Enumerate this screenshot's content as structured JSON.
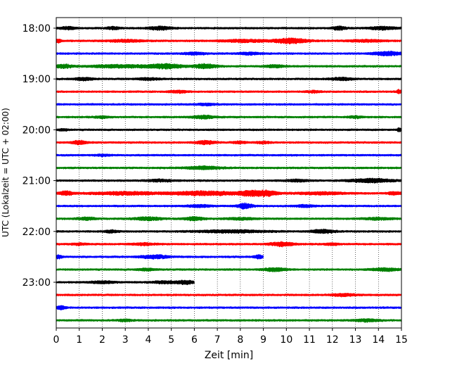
{
  "chart_data": {
    "type": "seismogram",
    "xlabel": "Zeit  [min]",
    "ylabel": "UTC (Lokalzeit = UTC + 02:00)",
    "xlim": [
      0,
      15
    ],
    "x_ticks": [
      "0",
      "1",
      "2",
      "3",
      "4",
      "5",
      "6",
      "7",
      "8",
      "9",
      "10",
      "11",
      "12",
      "13",
      "14",
      "15"
    ],
    "y_ticks": [
      {
        "label": "18:00",
        "trace": 0
      },
      {
        "label": "19:00",
        "trace": 4
      },
      {
        "label": "20:00",
        "trace": 8
      },
      {
        "label": "21:00",
        "trace": 12
      },
      {
        "label": "22:00",
        "trace": 16
      },
      {
        "label": "23:00",
        "trace": 20
      }
    ],
    "grid_x": true,
    "color_cycle": [
      "#000000",
      "#ff0000",
      "#0000ff",
      "#008000"
    ],
    "trace_minutes": 15,
    "traces": [
      {
        "start": "18:00",
        "end_min": 15,
        "bursts": [
          [
            0.5,
            0.3,
            1.8
          ],
          [
            2.5,
            0.3,
            1.6
          ],
          [
            4.5,
            0.5,
            2.0
          ],
          [
            12.3,
            0.3,
            2.2
          ],
          [
            14.2,
            0.6,
            1.8
          ]
        ]
      },
      {
        "start": "18:15",
        "end_min": 15,
        "bursts": [
          [
            0.1,
            0.15,
            2.0
          ],
          [
            3.0,
            0.8,
            1.3
          ],
          [
            8.2,
            1.0,
            1.6
          ],
          [
            10.2,
            0.7,
            3.2
          ],
          [
            13.5,
            0.8,
            1.3
          ]
        ]
      },
      {
        "start": "18:30",
        "end_min": 15,
        "bursts": [
          [
            6.0,
            0.5,
            1.3
          ],
          [
            8.4,
            0.5,
            1.4
          ],
          [
            14.4,
            0.6,
            2.4
          ]
        ]
      },
      {
        "start": "18:45",
        "end_min": 15,
        "bursts": [
          [
            0.3,
            0.4,
            2.2
          ],
          [
            2.8,
            1.3,
            1.8
          ],
          [
            4.8,
            0.7,
            3.0
          ],
          [
            6.5,
            0.5,
            2.8
          ],
          [
            9.5,
            0.4,
            1.8
          ]
        ]
      },
      {
        "start": "19:00",
        "end_min": 15,
        "bursts": [
          [
            1.2,
            0.4,
            1.6
          ],
          [
            4.0,
            0.5,
            1.3
          ],
          [
            12.4,
            0.5,
            1.6
          ]
        ]
      },
      {
        "start": "19:15",
        "end_min": 15,
        "bursts": [
          [
            5.3,
            0.4,
            1.3
          ],
          [
            11.2,
            0.3,
            1.2
          ],
          [
            14.9,
            0.1,
            2.4
          ]
        ]
      },
      {
        "start": "19:30",
        "end_min": 15,
        "bursts": [
          [
            6.5,
            0.4,
            1.2
          ]
        ]
      },
      {
        "start": "19:45",
        "end_min": 15,
        "bursts": [
          [
            2.0,
            0.3,
            1.1
          ],
          [
            6.4,
            0.5,
            2.0
          ],
          [
            13.0,
            0.3,
            1.1
          ]
        ]
      },
      {
        "start": "20:00",
        "end_min": 15,
        "bursts": [
          [
            0.3,
            0.2,
            1.2
          ],
          [
            14.9,
            0.1,
            2.0
          ]
        ]
      },
      {
        "start": "20:15",
        "end_min": 15,
        "bursts": [
          [
            1.0,
            0.3,
            2.4
          ],
          [
            6.5,
            0.4,
            2.2
          ],
          [
            8.0,
            0.3,
            1.3
          ],
          [
            9.0,
            0.3,
            1.3
          ]
        ]
      },
      {
        "start": "20:30",
        "end_min": 15,
        "bursts": [
          [
            2.0,
            0.3,
            1.0
          ]
        ]
      },
      {
        "start": "20:45",
        "end_min": 15,
        "bursts": [
          [
            6.4,
            0.8,
            1.8
          ]
        ]
      },
      {
        "start": "21:00",
        "end_min": 15,
        "bursts": [
          [
            4.5,
            0.6,
            1.3
          ],
          [
            10.5,
            0.5,
            1.3
          ],
          [
            13.7,
            0.9,
            2.4
          ]
        ]
      },
      {
        "start": "21:15",
        "end_min": 15,
        "bursts": [
          [
            0.4,
            0.3,
            2.6
          ],
          [
            3.0,
            1.5,
            1.8
          ],
          [
            6.5,
            1.5,
            2.6
          ],
          [
            8.5,
            0.5,
            3.2
          ],
          [
            9.2,
            0.4,
            3.0
          ],
          [
            11.5,
            1.2,
            1.4
          ],
          [
            14.7,
            0.3,
            2.0
          ]
        ]
      },
      {
        "start": "21:30",
        "end_min": 15,
        "bursts": [
          [
            6.2,
            0.5,
            1.4
          ],
          [
            8.2,
            0.3,
            3.4
          ],
          [
            10.8,
            0.4,
            1.3
          ]
        ]
      },
      {
        "start": "21:45",
        "end_min": 15,
        "bursts": [
          [
            1.3,
            0.4,
            1.6
          ],
          [
            4.0,
            0.6,
            2.0
          ],
          [
            6.0,
            0.4,
            2.2
          ],
          [
            8.0,
            0.6,
            1.3
          ],
          [
            14.0,
            0.6,
            1.3
          ]
        ]
      },
      {
        "start": "22:00",
        "end_min": 15,
        "bursts": [
          [
            2.4,
            0.3,
            1.5
          ],
          [
            7.6,
            1.5,
            1.6
          ],
          [
            11.6,
            0.5,
            2.2
          ]
        ]
      },
      {
        "start": "22:15",
        "end_min": 15,
        "bursts": [
          [
            1.0,
            0.3,
            1.2
          ],
          [
            3.8,
            0.5,
            1.3
          ],
          [
            9.8,
            0.5,
            2.6
          ],
          [
            12.0,
            0.3,
            1.2
          ]
        ]
      },
      {
        "start": "22:30",
        "end_min": 9.0,
        "bursts": [
          [
            0.1,
            0.15,
            2.0
          ],
          [
            4.3,
            0.6,
            2.2
          ],
          [
            8.8,
            0.2,
            2.0
          ]
        ]
      },
      {
        "start": "22:45",
        "end_min": 15,
        "bursts": [
          [
            3.9,
            0.4,
            1.3
          ],
          [
            9.5,
            0.5,
            2.0
          ],
          [
            14.3,
            0.6,
            1.8
          ]
        ]
      },
      {
        "start": "23:00",
        "end_min": 6.0,
        "bursts": [
          [
            2.0,
            0.5,
            1.4
          ],
          [
            4.7,
            0.5,
            1.4
          ],
          [
            5.6,
            0.4,
            2.2
          ]
        ]
      },
      {
        "start": "23:15",
        "end_min": 15,
        "bursts": [
          [
            12.5,
            0.5,
            1.6
          ]
        ]
      },
      {
        "start": "23:30",
        "end_min": 15,
        "bursts": [
          [
            0.2,
            0.2,
            2.4
          ]
        ]
      },
      {
        "start": "23:45",
        "end_min": 15,
        "bursts": [
          [
            3.0,
            0.3,
            1.2
          ],
          [
            13.5,
            0.5,
            1.6
          ]
        ]
      }
    ]
  }
}
